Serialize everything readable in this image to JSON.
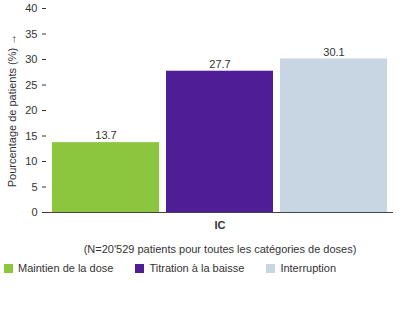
{
  "chart_data": {
    "type": "bar",
    "ylabel": "Pourcentage de patients (%)",
    "caption": "(N=20'529 patients pour toutes les catégories de doses)",
    "categories": [
      "IC"
    ],
    "series": [
      {
        "name": "Maintien de la dose",
        "color": "#8cc63f",
        "values": [
          13.7
        ]
      },
      {
        "name": "Titration à la baisse",
        "color": "#4f1d96",
        "values": [
          27.7
        ]
      },
      {
        "name": "Interruption",
        "color": "#c8d5e2",
        "values": [
          30.1
        ]
      }
    ],
    "ylim": [
      0,
      40
    ],
    "yticks": [
      0,
      5,
      10,
      15,
      20,
      25,
      30,
      35,
      40
    ],
    "grid": false,
    "data_labels": true,
    "legend": "bottom"
  }
}
